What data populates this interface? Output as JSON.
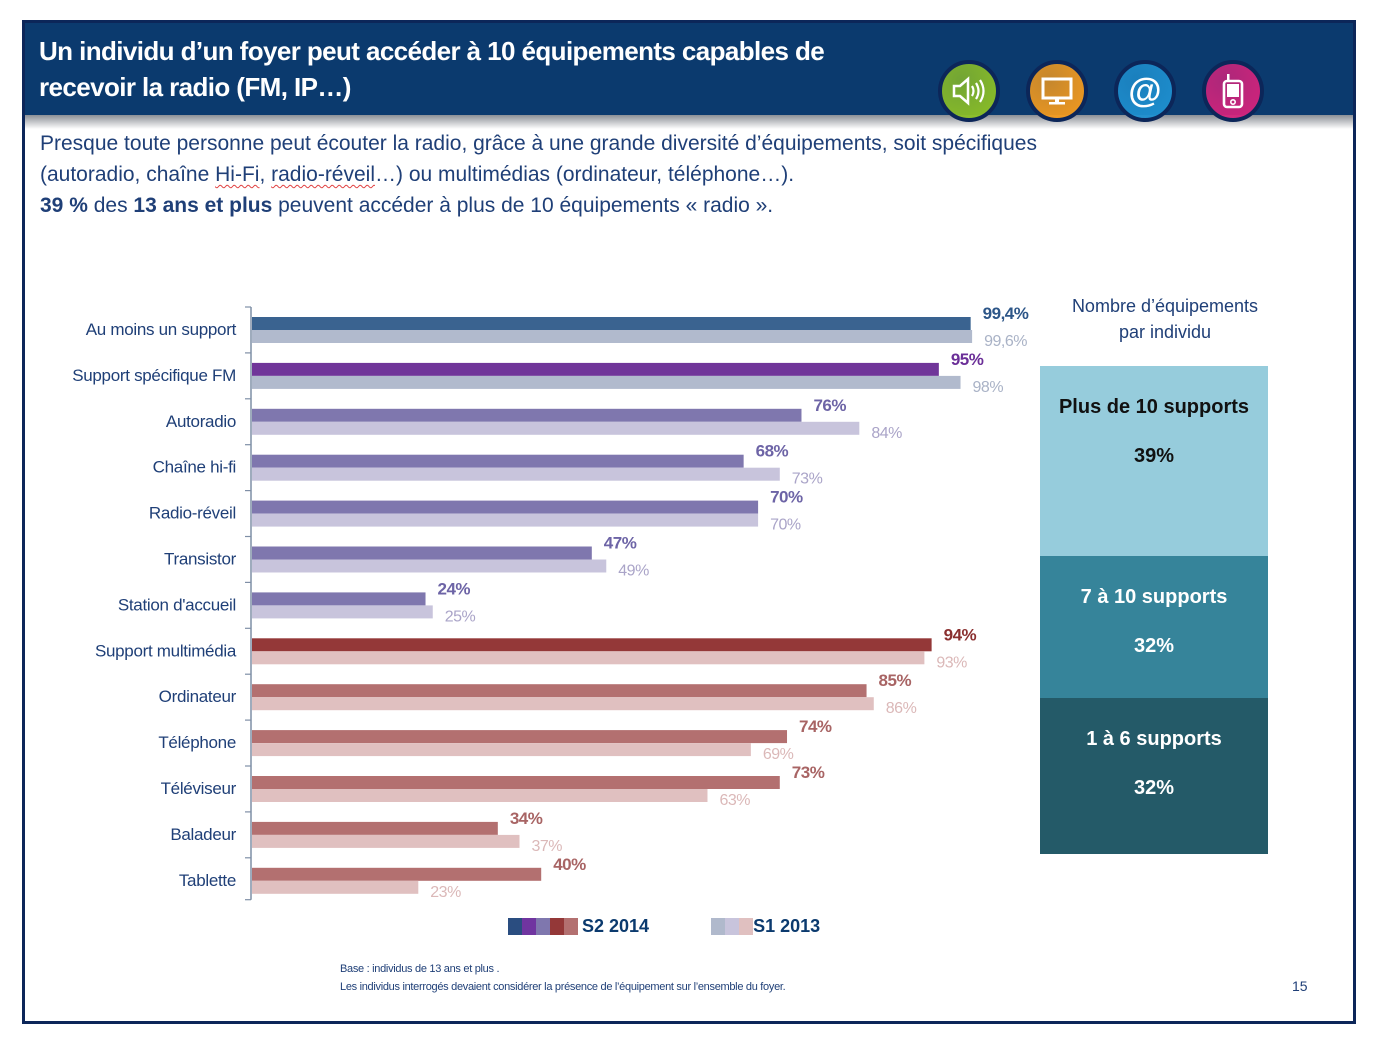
{
  "slide": {
    "title_line1": "Un individu d’un foyer peut accéder à 10 équipements capables de",
    "title_line2": "recevoir la radio (FM, IP…)",
    "icons": [
      {
        "name": "speaker-icon",
        "glyph": "🔊",
        "color": "#8cbf26"
      },
      {
        "name": "monitor-icon",
        "glyph": "▭",
        "color": "#f39a1e"
      },
      {
        "name": "at-sign-icon",
        "glyph": "@",
        "color": "#1e90d0"
      },
      {
        "name": "mobile-device-icon",
        "glyph": "▯",
        "color": "#d4237c"
      }
    ],
    "intro": {
      "line1": "Presque toute personne peut écouter la radio, grâce à une grande diversité d’équipements, soit spécifiques",
      "line2_a": "(autoradio, chaîne ",
      "line2_hifi": "Hi-Fi",
      "line2_b": ", ",
      "line2_reveil": "radio-réveil",
      "line2_c": "…) ou multimédias (ordinateur, téléphone…).",
      "line3_bold1": "39 %",
      "line3_a": " des ",
      "line3_bold2": "13 ans et plus",
      "line3_b": " peuvent accéder à plus de 10 équipements « radio »."
    },
    "panel": {
      "title_line1": "Nombre d’équipements",
      "title_line2": "par individu",
      "segments": [
        {
          "label": "Plus de 10 supports",
          "value": "39%",
          "share": 39,
          "bg": "#96ccdc",
          "fg": "#111111"
        },
        {
          "label": "7 à 10 supports",
          "value": "32%",
          "share": 32,
          "bg": "#36849a",
          "fg": "#ffffff"
        },
        {
          "label": "1 à 6 supports",
          "value": "32%",
          "share": 32,
          "bg": "#245a68",
          "fg": "#ffffff"
        }
      ]
    },
    "legend": {
      "s2_label": "S2 2014",
      "s1_label": "S1 2013",
      "s2_swatches": [
        "#2a4d80",
        "#7035a0",
        "#7f77ae",
        "#943838",
        "#b37070"
      ],
      "s1_swatches": [
        "#b0b9cc",
        "#c8c4dc",
        "#e0c0c0"
      ]
    },
    "footnote": {
      "line1": "Base : individus de 13 ans et plus .",
      "line2": "Les individus interrogés devaient considérer la présence de l’équipement sur l’ensemble du foyer."
    },
    "page_number": "15"
  },
  "chart_data": {
    "type": "bar",
    "orientation": "horizontal",
    "title": "",
    "xlabel": "",
    "ylabel": "",
    "xlim": [
      0,
      100
    ],
    "grid": false,
    "legend_position": "bottom",
    "categories": [
      "Au moins un support",
      "Support spécifique FM",
      "Autoradio",
      "Chaîne hi-fi",
      "Radio-réveil",
      "Transistor",
      "Station d'accueil",
      "Support multimédia",
      "Ordinateur",
      "Téléphone",
      "Téléviseur",
      "Baladeur",
      "Tablette"
    ],
    "series": [
      {
        "name": "S2 2014",
        "values": [
          99.4,
          95,
          76,
          68,
          70,
          47,
          24,
          94,
          85,
          74,
          73,
          34,
          40
        ],
        "labels": [
          "99,4%",
          "95%",
          "76%",
          "68%",
          "70%",
          "47%",
          "24%",
          "94%",
          "85%",
          "74%",
          "73%",
          "34%",
          "40%"
        ],
        "colors": [
          "#3a6390",
          "#703599",
          "#7f77ae",
          "#7f77ae",
          "#7f77ae",
          "#7f77ae",
          "#7f77ae",
          "#943838",
          "#b37070",
          "#b37070",
          "#b37070",
          "#b37070",
          "#b37070"
        ],
        "label_colors": [
          "#2d5688",
          "#6b2f98",
          "#6d64a6",
          "#6d64a6",
          "#6d64a6",
          "#6d64a6",
          "#6d64a6",
          "#8a2f2f",
          "#a86464",
          "#a86464",
          "#a86464",
          "#a86464",
          "#a86464"
        ]
      },
      {
        "name": "S1 2013",
        "values": [
          99.6,
          98,
          84,
          73,
          70,
          49,
          25,
          93,
          86,
          69,
          63,
          37,
          23
        ],
        "labels": [
          "99,6%",
          "98%",
          "84%",
          "73%",
          "70%",
          "49%",
          "25%",
          "93%",
          "86%",
          "69%",
          "63%",
          "37%",
          "23%"
        ],
        "colors": [
          "#b1bacd",
          "#b1bacd",
          "#c8c4dc",
          "#c8c4dc",
          "#c8c4dc",
          "#c8c4dc",
          "#c8c4dc",
          "#e0c0c0",
          "#e0c0c0",
          "#e0c0c0",
          "#e0c0c0",
          "#e0c0c0",
          "#e0c0c0"
        ],
        "label_colors": [
          "#a9b2c6",
          "#a9b2c6",
          "#aaa4c8",
          "#aaa4c8",
          "#aaa4c8",
          "#aaa4c8",
          "#aaa4c8",
          "#dbb8b8",
          "#dbb8b8",
          "#dbb8b8",
          "#dbb8b8",
          "#dbb8b8",
          "#dbb8b8"
        ]
      }
    ]
  }
}
